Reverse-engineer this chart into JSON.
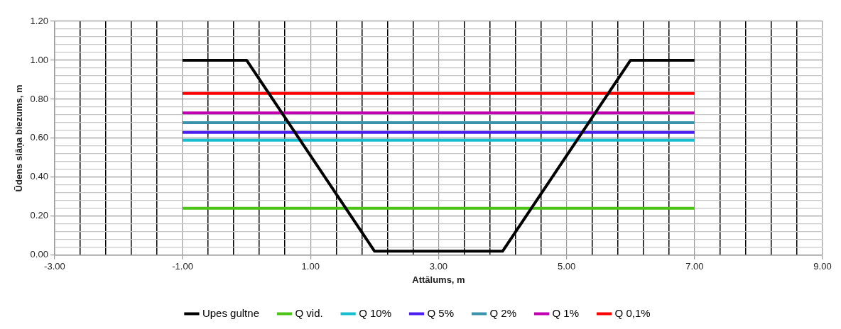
{
  "chart_data": {
    "type": "line",
    "xlabel": "Attālums, m",
    "ylabel": "Ūdens slāņa biezums, m",
    "xlim": [
      -3,
      9
    ],
    "xticks": [
      {
        "value": -3,
        "label": "-3.00"
      },
      {
        "value": -1,
        "label": "-1.00"
      },
      {
        "value": 1,
        "label": "1.00"
      },
      {
        "value": 3,
        "label": "3.00"
      },
      {
        "value": 5,
        "label": "5.00"
      },
      {
        "value": 7,
        "label": "7.00"
      },
      {
        "value": 9,
        "label": "9.00"
      }
    ],
    "ylim": [
      0,
      1.2
    ],
    "yticks": [
      {
        "value": 0,
        "label": "0.00"
      },
      {
        "value": 0.2,
        "label": "0.20"
      },
      {
        "value": 0.4,
        "label": "0.40"
      },
      {
        "value": 0.6,
        "label": "0.60"
      },
      {
        "value": 0.8,
        "label": "0.80"
      },
      {
        "value": 1,
        "label": "1.00"
      },
      {
        "value": 1.2,
        "label": "1.20"
      }
    ],
    "grid": true,
    "legend": "bottom",
    "marker": "none",
    "line_style": "solid",
    "series": [
      {
        "name": "Upes gultne",
        "color": "#000000",
        "x": [
          -1,
          0,
          2,
          4,
          6,
          7
        ],
        "values": [
          1,
          1,
          0.02,
          0.02,
          1,
          1
        ]
      },
      {
        "name": "Q vid.",
        "color": "#4cc417",
        "x": [
          -1,
          7
        ],
        "values": [
          0.24,
          0.24
        ]
      },
      {
        "name": "Q 10%",
        "color": "#17becf",
        "x": [
          -1,
          7
        ],
        "values": [
          0.59,
          0.59
        ]
      },
      {
        "name": "Q 5%",
        "color": "#4b1ff0",
        "x": [
          -1,
          7
        ],
        "values": [
          0.63,
          0.63
        ]
      },
      {
        "name": "Q 2%",
        "color": "#3a93ab",
        "x": [
          -1,
          7
        ],
        "values": [
          0.68,
          0.68
        ]
      },
      {
        "name": "Q 1%",
        "color": "#c000b0",
        "x": [
          -1,
          7
        ],
        "values": [
          0.73,
          0.73
        ]
      },
      {
        "name": "Q 0,1%",
        "color": "#ff0000",
        "x": [
          -1,
          7
        ],
        "values": [
          0.83,
          0.83
        ]
      }
    ]
  }
}
